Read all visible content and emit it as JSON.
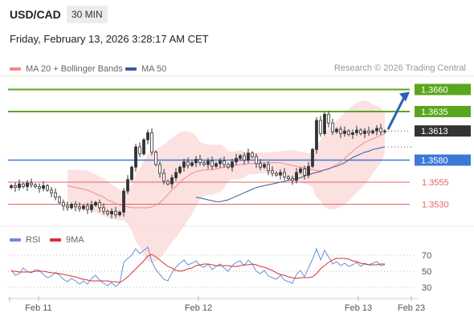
{
  "header": {
    "pair": "USD/CAD",
    "timeframe": "30 MIN",
    "timestamp": "Friday, February 13, 2026 3:28:17 AM CET",
    "copyright": "Research © 2026 Trading Central"
  },
  "colors": {
    "band": "#fbd7d7",
    "ma20": "#f28b8b",
    "ma50": "#3a5b9a",
    "resistance": "#5aa61e",
    "support_blue": "#3c78d8",
    "support_red": "#e06666",
    "price": "#333333",
    "arrow": "#2c62b8",
    "rsi": "#6b8fd6",
    "rsi_ma": "#d93030"
  },
  "legend": {
    "ma20_label": "MA 20 + Bollinger Bands",
    "ma50_label": "MA 50"
  },
  "rsi_legend": {
    "rsi_label": "RSI",
    "ma_label": "9MA"
  },
  "chart_data": {
    "type": "candlestick",
    "title": "USD/CAD 30 MIN",
    "ylim": [
      1.3505,
      1.3675
    ],
    "x_ticks": [
      "Feb 11",
      "Feb 12",
      "Feb 13",
      "Feb 23"
    ],
    "current_price": 1.3613,
    "levels": [
      {
        "value": 1.366,
        "label": "1.3660",
        "kind": "resistance"
      },
      {
        "value": 1.3635,
        "label": "1.3635",
        "kind": "resistance"
      },
      {
        "value": 1.3613,
        "label": "1.3613",
        "kind": "current"
      },
      {
        "value": 1.358,
        "label": "1.3580",
        "kind": "pivot"
      },
      {
        "value": 1.3555,
        "label": "1.3555",
        "kind": "support"
      },
      {
        "value": 1.353,
        "label": "1.3530",
        "kind": "support"
      }
    ],
    "close": [
      1.3551,
      1.3549,
      1.3553,
      1.355,
      1.3554,
      1.3552,
      1.355,
      1.3548,
      1.3551,
      1.3546,
      1.3543,
      1.3538,
      1.3532,
      1.3528,
      1.3526,
      1.353,
      1.3527,
      1.3525,
      1.3528,
      1.3524,
      1.3529,
      1.3532,
      1.3526,
      1.3522,
      1.3519,
      1.3522,
      1.3518,
      1.3521,
      1.3545,
      1.3558,
      1.3572,
      1.3595,
      1.3587,
      1.3603,
      1.3611,
      1.3589,
      1.3575,
      1.3565,
      1.3556,
      1.3553,
      1.356,
      1.3566,
      1.3572,
      1.3578,
      1.3574,
      1.3577,
      1.3581,
      1.3577,
      1.3575,
      1.3579,
      1.3573,
      1.3576,
      1.3579,
      1.3575,
      1.3572,
      1.3578,
      1.3582,
      1.3585,
      1.358,
      1.3588,
      1.3584,
      1.3576,
      1.3572,
      1.3575,
      1.3568,
      1.3565,
      1.3563,
      1.3566,
      1.3561,
      1.3559,
      1.3557,
      1.3566,
      1.357,
      1.3563,
      1.3573,
      1.3592,
      1.3625,
      1.361,
      1.3632,
      1.3622,
      1.3612,
      1.3615,
      1.361,
      1.3613,
      1.3609,
      1.3611,
      1.3614,
      1.361,
      1.3613,
      1.3611,
      1.3613,
      1.3616,
      1.3612,
      1.3613
    ],
    "ma20": [
      1.3551,
      1.355,
      1.3549,
      1.3548,
      1.3547,
      1.3546,
      1.3544,
      1.3542,
      1.354,
      1.3538,
      1.3535,
      1.3533,
      1.3531,
      1.3529,
      1.3528,
      1.3527,
      1.3526,
      1.3526,
      1.3526,
      1.3526,
      1.3526,
      1.3527,
      1.3529,
      1.3532,
      1.3536,
      1.3541,
      1.3546,
      1.355,
      1.3555,
      1.3559,
      1.3562,
      1.3565,
      1.3567,
      1.3568,
      1.3569,
      1.3569,
      1.3569,
      1.357,
      1.3571,
      1.3572,
      1.3573,
      1.3574,
      1.3574,
      1.3575,
      1.3575,
      1.3576,
      1.3576,
      1.3576,
      1.3577,
      1.3577,
      1.3577,
      1.3577,
      1.3577,
      1.3577,
      1.3576,
      1.3575,
      1.3574,
      1.3573,
      1.3572,
      1.3571,
      1.357,
      1.3569,
      1.3568,
      1.3568,
      1.3569,
      1.357,
      1.3572,
      1.3575,
      1.3578,
      1.3582,
      1.3586,
      1.359,
      1.3594,
      1.3597,
      1.36,
      1.3602,
      1.3604,
      1.3606,
      1.3608,
      1.361
    ],
    "ma50": [
      1.3538,
      1.3537,
      1.3536,
      1.3535,
      1.3534,
      1.3533,
      1.3533,
      1.3534,
      1.3535,
      1.3537,
      1.3539,
      1.3541,
      1.3543,
      1.3545,
      1.3547,
      1.3549,
      1.355,
      1.3551,
      1.3552,
      1.3553,
      1.3554,
      1.3555,
      1.3556,
      1.3557,
      1.3558,
      1.3559,
      1.356,
      1.3562,
      1.3563,
      1.3565,
      1.3566,
      1.3567,
      1.3569,
      1.357,
      1.3572,
      1.3573,
      1.3575,
      1.3577,
      1.358,
      1.3583,
      1.3585,
      1.3587,
      1.3589,
      1.359,
      1.3592,
      1.3593,
      1.3594,
      1.3595
    ],
    "rsi": {
      "ylim": [
        20,
        80
      ],
      "levels": [
        70,
        50,
        30
      ],
      "level_labels": [
        "70",
        "50",
        "30"
      ],
      "rsi": [
        52,
        45,
        47,
        54,
        50,
        48,
        52,
        51,
        46,
        42,
        44,
        48,
        45,
        40,
        37,
        41,
        38,
        34,
        38,
        34,
        41,
        45,
        39,
        35,
        32,
        36,
        31,
        35,
        61,
        66,
        70,
        78,
        72,
        76,
        80,
        62,
        52,
        46,
        40,
        38,
        48,
        55,
        60,
        64,
        58,
        60,
        63,
        57,
        55,
        59,
        52,
        56,
        59,
        54,
        50,
        57,
        61,
        63,
        57,
        64,
        59,
        50,
        47,
        51,
        44,
        42,
        40,
        45,
        39,
        37,
        35,
        46,
        51,
        43,
        54,
        65,
        78,
        64,
        76,
        68,
        59,
        62,
        57,
        60,
        56,
        58,
        61,
        56,
        60,
        58,
        60,
        62,
        57,
        58
      ],
      "ma9": [
        50,
        50,
        49,
        49,
        49,
        49,
        50,
        50,
        50,
        49,
        48,
        48,
        47,
        46,
        45,
        44,
        43,
        41,
        40,
        39,
        38,
        38,
        38,
        38,
        38,
        37,
        37,
        36,
        39,
        43,
        48,
        53,
        58,
        63,
        69,
        71,
        68,
        64,
        60,
        56,
        54,
        51,
        50,
        51,
        53,
        54,
        57,
        58,
        59,
        59,
        58,
        57,
        57,
        57,
        57,
        56,
        56,
        57,
        58,
        58,
        59,
        58,
        56,
        55,
        53,
        51,
        48,
        46,
        45,
        43,
        42,
        41,
        42,
        42,
        42,
        43,
        47,
        53,
        57,
        61,
        64,
        66,
        66,
        66,
        65,
        63,
        62,
        60,
        59,
        58,
        58,
        58,
        59,
        59
      ]
    }
  }
}
